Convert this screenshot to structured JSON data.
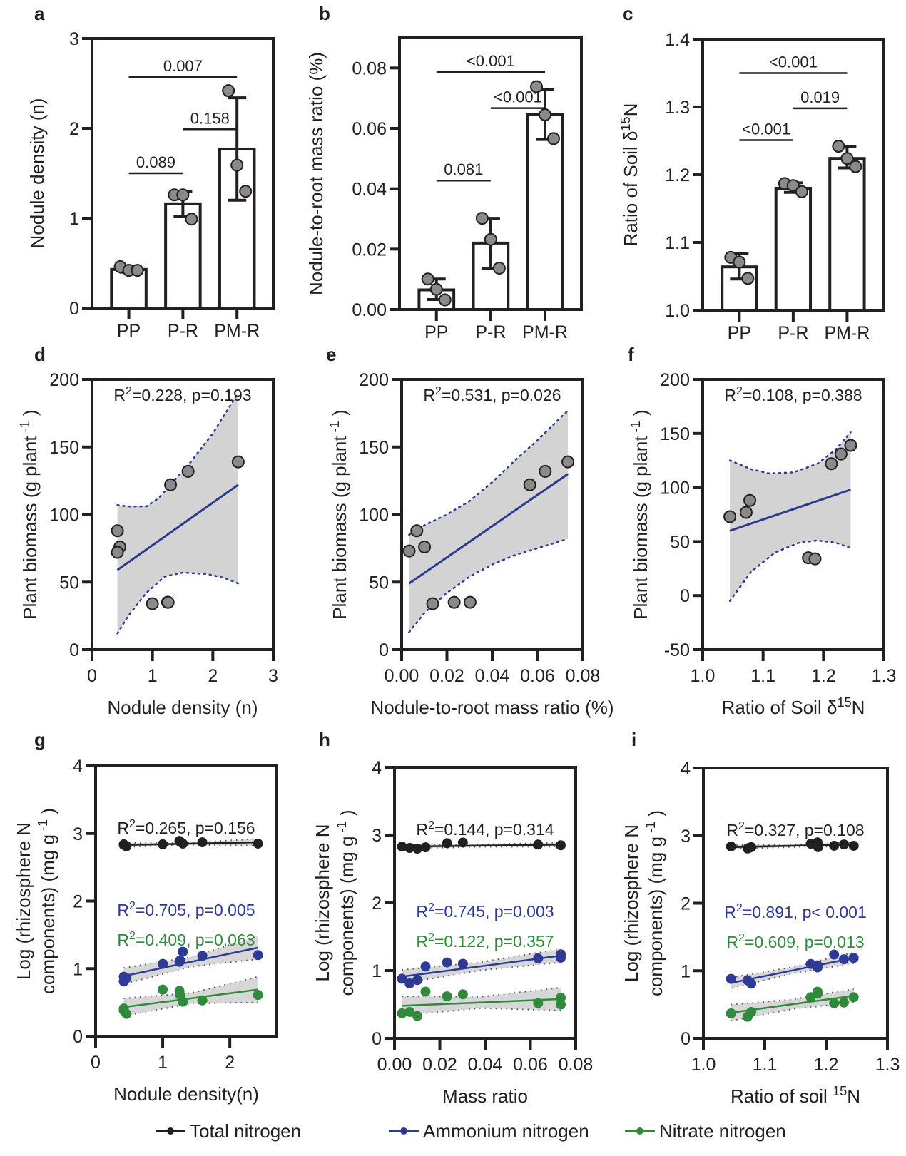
{
  "colors": {
    "axis": "#231f20",
    "point_fill": "#8a8a8a",
    "ci_fill": "#d3d3d3",
    "fit_line": "#2b3990",
    "ci_dots": "#2b3990",
    "total_nitrogen": "#231f20",
    "ammonium_nitrogen": "#2e3a93",
    "nitrate_nitrogen": "#2f8a3c"
  },
  "legend": {
    "items": [
      {
        "label": "Total nitrogen",
        "series": "total_nitrogen"
      },
      {
        "label": "Ammonium nitrogen",
        "series": "ammonium_nitrogen"
      },
      {
        "label": "Nitrate nitrogen",
        "series": "nitrate_nitrogen"
      }
    ],
    "placement": "bottom-center"
  },
  "chart_data": [
    {
      "panel": "a",
      "type": "bar",
      "title": "",
      "xlabel": "",
      "ylabel": "Nodule density (n)",
      "categories": [
        "PP",
        "P-R",
        "PM-R"
      ],
      "values": [
        0.43,
        1.16,
        1.77
      ],
      "error": [
        [
          0.4,
          0.46
        ],
        [
          1.02,
          1.3
        ],
        [
          1.2,
          2.34
        ]
      ],
      "points": [
        [
          0.46,
          0.42,
          0.42
        ],
        [
          1.26,
          1.26,
          0.99
        ],
        [
          2.42,
          1.59,
          1.3
        ]
      ],
      "ylim": [
        0,
        3
      ],
      "yticks": [
        "0",
        "1",
        "2",
        "3"
      ],
      "comparisons": [
        {
          "from": 0,
          "to": 1,
          "label": "0.089",
          "y": 1.5
        },
        {
          "from": 1,
          "to": 2,
          "label": "0.158",
          "y": 1.99
        },
        {
          "from": 0,
          "to": 2,
          "label": "0.007",
          "y": 2.57
        }
      ]
    },
    {
      "panel": "b",
      "type": "bar",
      "title": "",
      "xlabel": "",
      "ylabel": "Nodule-to-root mass ratio (%)",
      "categories": [
        "PP",
        "P-R",
        "PM-R"
      ],
      "values": [
        0.0065,
        0.022,
        0.0645
      ],
      "error": [
        [
          0.0033,
          0.0101
        ],
        [
          0.0137,
          0.0302
        ],
        [
          0.0563,
          0.0728
        ]
      ],
      "points": [
        [
          0.0101,
          0.0067,
          0.0032
        ],
        [
          0.0302,
          0.0232,
          0.0137
        ],
        [
          0.0738,
          0.0645,
          0.0566
        ]
      ],
      "ylim": [
        0,
        0.09
      ],
      "yticks": [
        "0.00",
        "0.02",
        "0.04",
        "0.06",
        "0.08"
      ],
      "comparisons": [
        {
          "from": 0,
          "to": 1,
          "label": "0.081",
          "y": 0.0427
        },
        {
          "from": 1,
          "to": 2,
          "label": "<0.001",
          "y": 0.0667
        },
        {
          "from": 0,
          "to": 2,
          "label": "<0.001",
          "y": 0.0787
        }
      ]
    },
    {
      "panel": "c",
      "type": "bar",
      "title": "",
      "xlabel": "",
      "ylabel": "Ratio of Soil  δ15N",
      "categories": [
        "PP",
        "P-R",
        "PM-R"
      ],
      "values": [
        1.064,
        1.18,
        1.224
      ],
      "error": [
        [
          1.046,
          1.084
        ],
        [
          1.174,
          1.188
        ],
        [
          1.21,
          1.241
        ]
      ],
      "points": [
        [
          1.078,
          1.071,
          1.047
        ],
        [
          1.187,
          1.184,
          1.175
        ],
        [
          1.242,
          1.224,
          1.212
        ]
      ],
      "ylim": [
        1.0,
        1.4
      ],
      "yticks": [
        "1.0",
        "1.1",
        "1.2",
        "1.3",
        "1.4"
      ],
      "comparisons": [
        {
          "from": 0,
          "to": 1,
          "label": "<0.001",
          "y": 1.251
        },
        {
          "from": 1,
          "to": 2,
          "label": "0.019",
          "y": 1.298
        },
        {
          "from": 0,
          "to": 2,
          "label": "<0.001",
          "y": 1.35
        }
      ]
    },
    {
      "panel": "d",
      "type": "scatter",
      "title": "",
      "xlabel": "Nodule density (n)",
      "ylabel": "Plant biomass (g plant -1)",
      "annotation": "R²=0.228,  p=0.193",
      "x": [
        0.42,
        0.46,
        0.42,
        1.3,
        1.59,
        2.42,
        1.0,
        1.25,
        1.26
      ],
      "y": [
        88,
        76,
        72,
        122,
        132,
        139,
        34,
        35,
        35
      ],
      "fit": {
        "x": [
          0.42,
          2.42
        ],
        "y": [
          59,
          122
        ]
      },
      "ci_upper": [
        [
          0.42,
          107
        ],
        [
          0.6,
          106
        ],
        [
          0.9,
          106
        ],
        [
          1.1,
          112
        ],
        [
          1.3,
          122
        ],
        [
          1.6,
          137
        ],
        [
          2.0,
          160
        ],
        [
          2.42,
          190
        ]
      ],
      "ci_lower": [
        [
          0.42,
          12
        ],
        [
          0.6,
          25
        ],
        [
          0.9,
          42
        ],
        [
          1.2,
          54
        ],
        [
          1.5,
          57
        ],
        [
          1.9,
          56
        ],
        [
          2.2,
          53
        ],
        [
          2.42,
          49
        ]
      ],
      "xlim": [
        0,
        3
      ],
      "ylim": [
        0,
        200
      ],
      "xticks": [
        "0",
        "1",
        "2",
        "3"
      ],
      "yticks": [
        "0",
        "50",
        "100",
        "150",
        "200"
      ]
    },
    {
      "panel": "e",
      "type": "scatter",
      "title": "",
      "xlabel": "Nodule-to-root mass ratio  (%)",
      "ylabel": "Plant biomass (g plant -1)",
      "annotation": "R²=0.531,  p=0.026",
      "x": [
        0.0033,
        0.0067,
        0.0101,
        0.0137,
        0.0232,
        0.0302,
        0.0566,
        0.0634,
        0.0734
      ],
      "y": [
        73,
        88,
        76,
        34,
        35,
        35,
        122,
        132,
        139
      ],
      "fit": {
        "x": [
          0.0033,
          0.0734
        ],
        "y": [
          49,
          130
        ]
      },
      "ci_upper": [
        [
          0.0033,
          85
        ],
        [
          0.01,
          92
        ],
        [
          0.02,
          100
        ],
        [
          0.03,
          110
        ],
        [
          0.04,
          124
        ],
        [
          0.05,
          140
        ],
        [
          0.06,
          155
        ],
        [
          0.0734,
          177
        ]
      ],
      "ci_lower": [
        [
          0.0033,
          13
        ],
        [
          0.01,
          27
        ],
        [
          0.02,
          42
        ],
        [
          0.03,
          54
        ],
        [
          0.04,
          63
        ],
        [
          0.05,
          70
        ],
        [
          0.06,
          75
        ],
        [
          0.0734,
          82
        ]
      ],
      "xlim": [
        0,
        0.08
      ],
      "ylim": [
        0,
        200
      ],
      "xticks": [
        "0.00",
        "0.02",
        "0.04",
        "0.06",
        "0.08"
      ],
      "yticks": [
        "0",
        "50",
        "100",
        "150",
        "200"
      ]
    },
    {
      "panel": "f",
      "type": "scatter",
      "title": "",
      "xlabel": "Ratio of Soil  δ15N",
      "ylabel": "Plant biomass (g plant -1)",
      "annotation": "R²=0.108,  p=0.388",
      "x": [
        1.045,
        1.072,
        1.078,
        1.175,
        1.186,
        1.213,
        1.229,
        1.245
      ],
      "y": [
        73,
        77,
        88,
        35,
        34,
        122,
        131,
        139
      ],
      "fit": {
        "x": [
          1.045,
          1.245
        ],
        "y": [
          60,
          98
        ]
      },
      "ci_upper": [
        [
          1.045,
          125
        ],
        [
          1.08,
          117
        ],
        [
          1.11,
          113
        ],
        [
          1.15,
          114
        ],
        [
          1.19,
          122
        ],
        [
          1.22,
          135
        ],
        [
          1.245,
          151
        ]
      ],
      "ci_lower": [
        [
          1.045,
          -5
        ],
        [
          1.08,
          22
        ],
        [
          1.12,
          40
        ],
        [
          1.16,
          49
        ],
        [
          1.19,
          51
        ],
        [
          1.22,
          49
        ],
        [
          1.245,
          44
        ]
      ],
      "xlim": [
        1.0,
        1.3
      ],
      "ylim": [
        -50,
        200
      ],
      "xticks": [
        "1.0",
        "1.1",
        "1.2",
        "1.3"
      ],
      "yticks": [
        "-50",
        "0",
        "50",
        "100",
        "150",
        "200"
      ]
    },
    {
      "panel": "g",
      "type": "scatter",
      "title": "",
      "xlabel": "Nodule density(n)",
      "ylabel": "Log (rhizosphere N components) (mg g -1)",
      "xlim": [
        0,
        2.7
      ],
      "ylim": [
        0,
        4
      ],
      "xticks": [
        "0",
        "1",
        "2"
      ],
      "yticks": [
        "0",
        "1",
        "2",
        "3",
        "4"
      ],
      "series": [
        {
          "name": "Total nitrogen",
          "key": "total_nitrogen",
          "annotation": "R²=0.265,  p=0.156",
          "x": [
            0.42,
            0.46,
            0.42,
            1.0,
            1.25,
            1.26,
            1.3,
            1.59,
            2.42
          ],
          "y": [
            2.83,
            2.81,
            2.84,
            2.84,
            2.89,
            2.88,
            2.85,
            2.87,
            2.85
          ],
          "fit": {
            "x": [
              0.42,
              2.42
            ],
            "y": [
              2.83,
              2.87
            ]
          },
          "ci": [
            0.03,
            0.05
          ]
        },
        {
          "name": "Ammonium nitrogen",
          "key": "ammonium_nitrogen",
          "annotation": "R²=0.705,  p=0.005",
          "x": [
            0.42,
            0.46,
            0.42,
            1.0,
            1.25,
            1.26,
            1.3,
            1.59,
            2.42
          ],
          "y": [
            0.81,
            0.86,
            0.88,
            1.07,
            1.1,
            1.12,
            1.25,
            1.19,
            1.2
          ],
          "fit": {
            "x": [
              0.42,
              2.42
            ],
            "y": [
              0.89,
              1.31
            ]
          },
          "ci": [
            0.12,
            0.17
          ]
        },
        {
          "name": "Nitrate nitrogen",
          "key": "nitrate_nitrogen",
          "annotation": "R²=0.409,  p=0.063",
          "x": [
            0.42,
            0.46,
            0.42,
            1.0,
            1.25,
            1.26,
            1.3,
            1.59,
            2.42
          ],
          "y": [
            0.38,
            0.33,
            0.41,
            0.69,
            0.67,
            0.61,
            0.51,
            0.53,
            0.61
          ],
          "fit": {
            "x": [
              0.42,
              2.42
            ],
            "y": [
              0.43,
              0.69
            ]
          },
          "ci": [
            0.13,
            0.19
          ]
        }
      ]
    },
    {
      "panel": "h",
      "type": "scatter",
      "title": "",
      "xlabel": "Mass ratio",
      "ylabel": "Log (rhizosphere N components) (mg g -1)",
      "xlim": [
        0,
        0.08
      ],
      "ylim": [
        0,
        4
      ],
      "xticks": [
        "0.00",
        "0.02",
        "0.04",
        "0.06",
        "0.08"
      ],
      "yticks": [
        "0",
        "1",
        "2",
        "3",
        "4"
      ],
      "series": [
        {
          "name": "Total nitrogen",
          "key": "total_nitrogen",
          "annotation": "R²=0.144,  p=0.314",
          "x": [
            0.0033,
            0.0067,
            0.0101,
            0.0137,
            0.0232,
            0.0302,
            0.0634,
            0.0734
          ],
          "y": [
            2.83,
            2.81,
            2.8,
            2.82,
            2.88,
            2.89,
            2.86,
            2.85
          ],
          "fit": {
            "x": [
              0.0033,
              0.0734
            ],
            "y": [
              2.83,
              2.86
            ]
          },
          "ci": [
            0.03,
            0.03
          ]
        },
        {
          "name": "Ammonium nitrogen",
          "key": "ammonium_nitrogen",
          "annotation": "R²=0.745,  p=0.003",
          "x": [
            0.0033,
            0.0067,
            0.0101,
            0.0137,
            0.0232,
            0.0302,
            0.0634,
            0.0734,
            0.0734
          ],
          "y": [
            0.88,
            0.81,
            0.86,
            1.06,
            1.12,
            1.1,
            1.18,
            1.19,
            1.24
          ],
          "fit": {
            "x": [
              0.0033,
              0.0734
            ],
            "y": [
              0.91,
              1.22
            ]
          },
          "ci": [
            0.1,
            0.1
          ]
        },
        {
          "name": "Nitrate nitrogen",
          "key": "nitrate_nitrogen",
          "annotation": "R²=0.122,  p=0.357",
          "x": [
            0.0033,
            0.0067,
            0.0101,
            0.0137,
            0.0232,
            0.0302,
            0.0634,
            0.0734,
            0.0734
          ],
          "y": [
            0.37,
            0.39,
            0.33,
            0.69,
            0.62,
            0.65,
            0.52,
            0.5,
            0.6
          ],
          "fit": {
            "x": [
              0.0033,
              0.0734
            ],
            "y": [
              0.48,
              0.58
            ]
          },
          "ci": [
            0.14,
            0.17
          ]
        }
      ]
    },
    {
      "panel": "i",
      "type": "scatter",
      "title": "",
      "xlabel": "Ratio of soil 15N",
      "ylabel": "Log (rhizosphere N components) (mg g -1)",
      "xlim": [
        1.0,
        1.3
      ],
      "ylim": [
        0,
        4
      ],
      "xticks": [
        "1.0",
        "1.1",
        "1.2",
        "1.3"
      ],
      "yticks": [
        "0",
        "1",
        "2",
        "3",
        "4"
      ],
      "series": [
        {
          "name": "Total nitrogen",
          "key": "total_nitrogen",
          "annotation": "R²=0.327,  p=0.108",
          "x": [
            1.045,
            1.072,
            1.078,
            1.075,
            1.175,
            1.186,
            1.187,
            1.213,
            1.229,
            1.245
          ],
          "y": [
            2.84,
            2.81,
            2.83,
            2.82,
            2.88,
            2.9,
            2.83,
            2.85,
            2.87,
            2.85
          ],
          "fit": {
            "x": [
              1.045,
              1.245
            ],
            "y": [
              2.83,
              2.87
            ]
          },
          "ci": [
            0.03,
            0.03
          ]
        },
        {
          "name": "Ammonium nitrogen",
          "key": "ammonium_nitrogen",
          "annotation": "R²=0.891,  p< 0.001",
          "x": [
            1.045,
            1.072,
            1.078,
            1.175,
            1.186,
            1.186,
            1.213,
            1.229,
            1.245
          ],
          "y": [
            0.88,
            0.86,
            0.81,
            1.1,
            1.08,
            1.05,
            1.24,
            1.17,
            1.19
          ],
          "fit": {
            "x": [
              1.045,
              1.245
            ],
            "y": [
              0.82,
              1.19
            ]
          },
          "ci": [
            0.08,
            0.08
          ]
        },
        {
          "name": "Nitrate nitrogen",
          "key": "nitrate_nitrogen",
          "annotation": "R²=0.609,  p=0.013",
          "x": [
            1.045,
            1.072,
            1.078,
            1.175,
            1.186,
            1.186,
            1.213,
            1.229,
            1.245
          ],
          "y": [
            0.37,
            0.32,
            0.39,
            0.61,
            0.66,
            0.69,
            0.52,
            0.53,
            0.61
          ],
          "fit": {
            "x": [
              1.045,
              1.245
            ],
            "y": [
              0.38,
              0.63
            ]
          },
          "ci": [
            0.12,
            0.1
          ]
        }
      ]
    }
  ]
}
